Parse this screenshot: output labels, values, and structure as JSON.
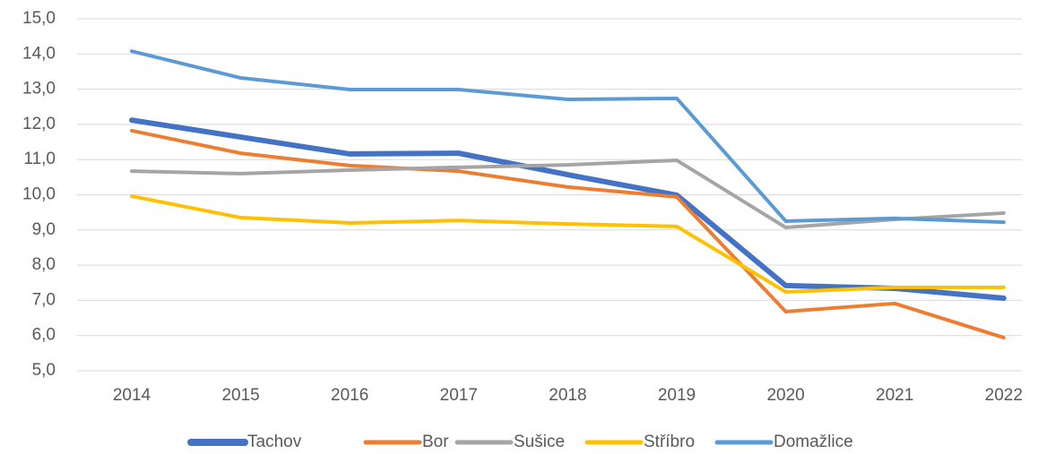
{
  "chart_data": {
    "type": "line",
    "categories": [
      "2014",
      "2015",
      "2016",
      "2017",
      "2018",
      "2019",
      "2020",
      "2021",
      "2022"
    ],
    "series": [
      {
        "name": "Tachov",
        "color": "#4472c4",
        "values": [
          12.12,
          11.64,
          11.16,
          11.18,
          10.57,
          9.99,
          7.42,
          7.34,
          7.06
        ]
      },
      {
        "name": "Bor",
        "color": "#ed7d31",
        "values": [
          11.82,
          11.18,
          10.83,
          10.67,
          10.22,
          9.94,
          6.68,
          6.91,
          5.94
        ]
      },
      {
        "name": "Sušice",
        "color": "#a5a5a5",
        "values": [
          10.67,
          10.6,
          10.7,
          10.78,
          10.85,
          10.98,
          9.07,
          9.3,
          9.48
        ]
      },
      {
        "name": "Stříbro",
        "color": "#ffc000",
        "values": [
          9.96,
          9.35,
          9.2,
          9.27,
          9.17,
          9.1,
          7.24,
          7.37,
          7.37
        ]
      },
      {
        "name": "Domažlice",
        "color": "#5b9bd5",
        "values": [
          14.08,
          13.32,
          12.99,
          12.99,
          12.71,
          12.74,
          9.25,
          9.33,
          9.22
        ]
      }
    ],
    "ylim": [
      5,
      15
    ],
    "yticks": [
      {
        "value": 5,
        "label": "5,0"
      },
      {
        "value": 6,
        "label": "6,0"
      },
      {
        "value": 7,
        "label": "7,0"
      },
      {
        "value": 8,
        "label": "8,0"
      },
      {
        "value": 9,
        "label": "9,0"
      },
      {
        "value": 10,
        "label": "10,0"
      },
      {
        "value": 11,
        "label": "11,0"
      },
      {
        "value": 12,
        "label": "12,0"
      },
      {
        "value": 13,
        "label": "13,0"
      },
      {
        "value": 14,
        "label": "14,0"
      },
      {
        "value": 15,
        "label": "15,0"
      }
    ],
    "grid": true,
    "legend": "bottom"
  }
}
